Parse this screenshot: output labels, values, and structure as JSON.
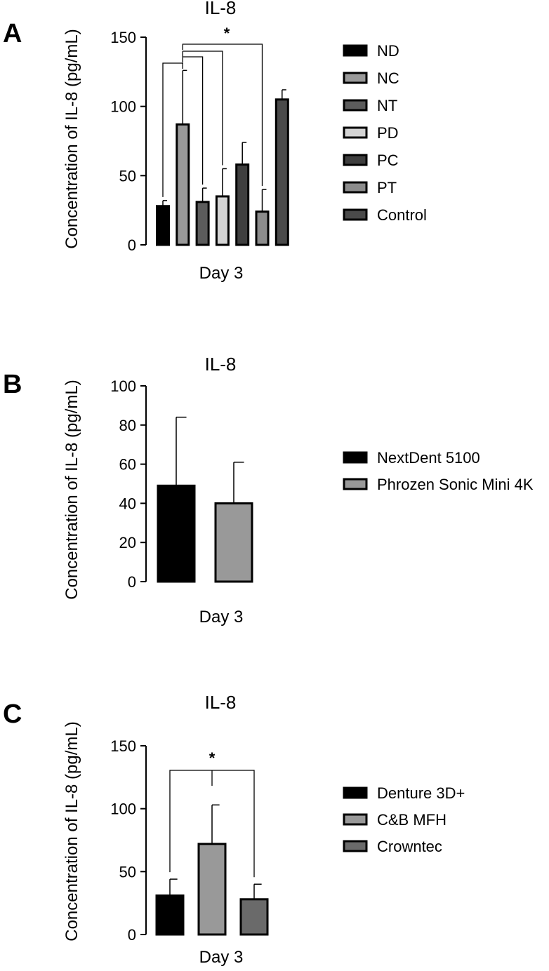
{
  "colors": {
    "ND": "#000000",
    "NC": "#999999",
    "NT": "#5c5c5c",
    "PD": "#d4d4d4",
    "PC": "#3f3f3f",
    "PT": "#8c8c8c",
    "Control": "#4a4a4a",
    "NextDent 5100": "#000000",
    "Phrozen Sonic Mini 4K": "#999999",
    "Denture 3D+": "#000000",
    "C&B MFH": "#999999",
    "Crowntec": "#6a6a6a"
  },
  "chart_data": [
    {
      "panel": "A",
      "type": "bar",
      "title": "IL-8",
      "ylabel": "Concentration of IL-8 (pg/mL)",
      "xlabel": "Day 3",
      "ylim": [
        0,
        150
      ],
      "yticks": [
        "0",
        "50",
        "100",
        "150"
      ],
      "categories": [
        "ND",
        "NC",
        "NT",
        "PD",
        "PC",
        "PT",
        "Control"
      ],
      "values": [
        28,
        87,
        31,
        35,
        58,
        24,
        105
      ],
      "errors": [
        4,
        39,
        10,
        20,
        16,
        16,
        7
      ],
      "legend": [
        "ND",
        "NC",
        "NT",
        "PD",
        "PC",
        "PT",
        "Control"
      ],
      "significance": "*"
    },
    {
      "panel": "B",
      "type": "bar",
      "title": "IL-8",
      "ylabel": "Concentration of IL-8 (pg/mL)",
      "xlabel": "Day 3",
      "ylim": [
        0,
        100
      ],
      "yticks": [
        "0",
        "20",
        "40",
        "60",
        "80",
        "100"
      ],
      "categories": [
        "NextDent 5100",
        "Phrozen Sonic Mini 4K"
      ],
      "values": [
        49,
        40
      ],
      "errors": [
        35,
        21
      ],
      "legend": [
        "NextDent 5100",
        "Phrozen Sonic Mini 4K"
      ]
    },
    {
      "panel": "C",
      "type": "bar",
      "title": "IL-8",
      "ylabel": "Concentration of IL-8 (pg/mL)",
      "xlabel": "Day 3",
      "ylim": [
        0,
        150
      ],
      "yticks": [
        "0",
        "50",
        "100",
        "150"
      ],
      "categories": [
        "Denture 3D+",
        "C&B MFH",
        "Crowntec"
      ],
      "values": [
        31,
        72,
        28
      ],
      "errors": [
        13,
        31,
        12
      ],
      "legend": [
        "Denture 3D+",
        "C&B MFH",
        "Crowntec"
      ],
      "significance": "*"
    }
  ]
}
